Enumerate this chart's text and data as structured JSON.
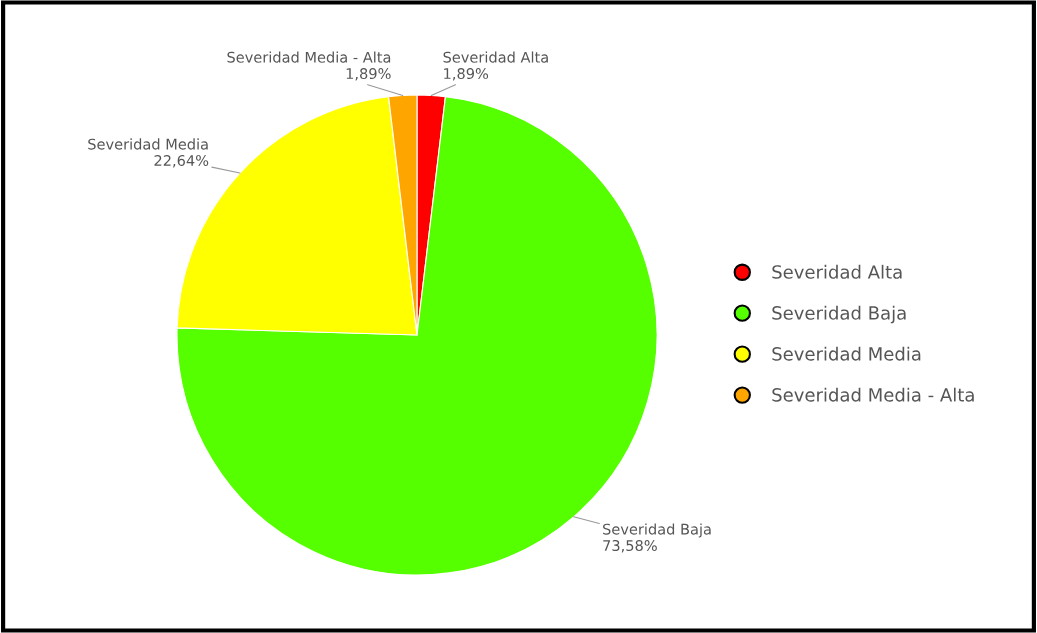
{
  "chart_data": {
    "type": "pie",
    "categories": [
      "Severidad Alta",
      "Severidad Baja",
      "Severidad Media",
      "Severidad Media - Alta"
    ],
    "values": [
      1.89,
      73.58,
      22.64,
      1.89
    ],
    "value_labels": [
      "1,89%",
      "73,58%",
      "22,64%",
      "1,89%"
    ],
    "colors": [
      "#ff0000",
      "#55ff00",
      "#ffff00",
      "#ffa500"
    ],
    "legend": "right"
  }
}
